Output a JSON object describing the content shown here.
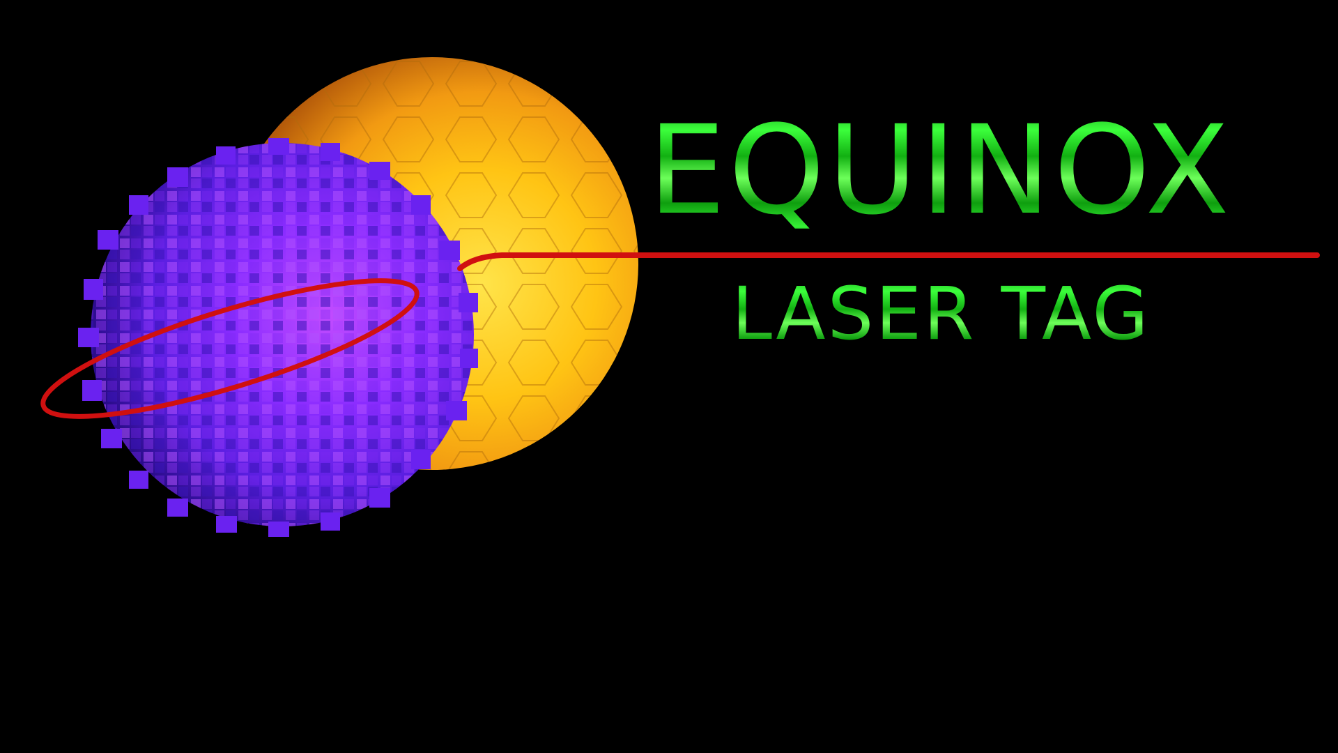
{
  "logo": {
    "title": "EQUINOX",
    "subtitle": "LASER TAG",
    "icons": [
      "sun-planet-icon",
      "cube-planet-icon",
      "laser-beam-icon"
    ],
    "colors": {
      "background": "#000000",
      "text_green": "#22e022",
      "sun_yellow": "#ffd21a",
      "sun_orange": "#e07a10",
      "planet_purple": "#8a2cff",
      "laser_red": "#d01010"
    }
  }
}
